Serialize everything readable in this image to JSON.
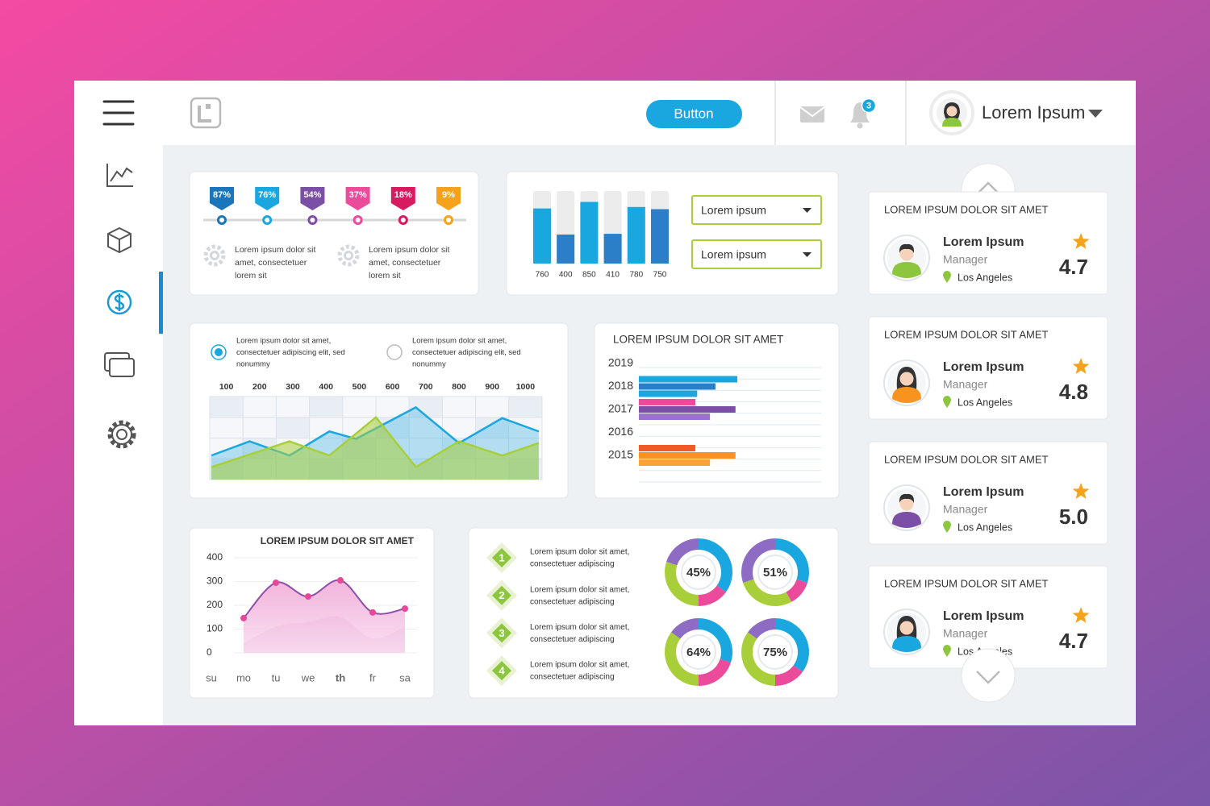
{
  "header": {
    "button": "Button",
    "badge": "3",
    "user": "Lorem Ipsum"
  },
  "chart_data": [
    {
      "type": "markers",
      "values": [
        87,
        76,
        54,
        37,
        18,
        9
      ],
      "value_labels": [
        "87%",
        "76%",
        "54%",
        "37%",
        "18%",
        "9%"
      ],
      "colors": [
        "#1b75bb",
        "#1aa7e0",
        "#7b4fa6",
        "#ec4b9b",
        "#d81b60",
        "#f7a21b"
      ],
      "annotations": [
        [
          "Lorem ipsum dolor sit",
          "amet, consectetuer",
          "lorem sit"
        ],
        [
          "Lorem ipsum dolor sit",
          "amet, consectetuer",
          "lorem sit"
        ]
      ]
    },
    {
      "type": "bar",
      "values": [
        760,
        400,
        850,
        410,
        780,
        750
      ],
      "colors": [
        "#1aa7e0",
        "#2a7fc8",
        "#1aa7e0",
        "#2a7fc8",
        "#1aa7e0",
        "#2a7fc8"
      ],
      "ylim": [
        0,
        1000
      ],
      "controls": [
        "Lorem ipsum",
        "Lorem ipsum"
      ]
    },
    {
      "type": "area",
      "options": [
        {
          "lines": [
            "Lorem ipsum dolor sit amet,",
            "consectetuer adipiscing elit, sed",
            "nonummy"
          ],
          "selected": true
        },
        {
          "lines": [
            "Lorem ipsum dolor sit amet,",
            "consectetuer adipiscing elit, sed",
            "nonummy"
          ],
          "selected": false
        }
      ],
      "xlim": [
        50,
        1050
      ],
      "xticks": [
        100,
        200,
        300,
        400,
        500,
        600,
        700,
        800,
        900,
        1000
      ],
      "ylim": [
        0,
        100
      ],
      "series": [
        {
          "color": "#1aa7e0",
          "x": [
            55,
            170,
            290,
            410,
            490,
            670,
            800,
            930,
            1040
          ],
          "values": [
            29,
            46,
            29,
            58,
            49,
            87,
            44,
            74,
            58
          ]
        },
        {
          "color": "#a8cf3a",
          "x": [
            55,
            290,
            410,
            550,
            670,
            800,
            930,
            1040
          ],
          "values": [
            15,
            46,
            29,
            75,
            15,
            46,
            29,
            44
          ]
        }
      ]
    },
    {
      "type": "hbar",
      "title": "LOREM IPSUM DOLOR SIT AMET",
      "categories": [
        "2019",
        "2018",
        "2017",
        "2016",
        "2015"
      ],
      "values": [
        null,
        [
          54,
          42,
          32
        ],
        [
          31,
          53,
          39
        ],
        null,
        [
          31,
          53,
          39
        ]
      ],
      "colors": [
        null,
        [
          "#1aa7e0",
          "#2a7fc8",
          "#1aa7e0"
        ],
        [
          "#ec4b9b",
          "#7b4fa6",
          "#9b72c9"
        ],
        null,
        [
          "#f15a24",
          "#f7931e",
          "#f9a33b"
        ]
      ],
      "xlim": [
        0,
        100
      ]
    },
    {
      "type": "line",
      "title": "LOREM IPSUM DOLOR SIT AMET",
      "categories": [
        "su",
        "mo",
        "tu",
        "we",
        "th",
        "fr",
        "sa"
      ],
      "ylim": [
        0,
        400
      ],
      "yticks": [
        0,
        100,
        200,
        300,
        400
      ],
      "series": [
        {
          "color": "#e2b3dd",
          "values": [
            null,
            40,
            110,
            130,
            150,
            60,
            110
          ]
        },
        {
          "color": "#8e4fa8",
          "marker_color": "#e8479a",
          "values": [
            null,
            146,
            295,
            237,
            305,
            170,
            186
          ]
        }
      ]
    },
    {
      "type": "donut",
      "values": [
        45,
        51,
        64,
        75
      ],
      "value_labels": [
        "45%",
        "51%",
        "64%",
        "75%"
      ],
      "colors": [
        "#1aa7e0",
        "#ec4b9b",
        "#a8cf3a",
        "#8e6cc4"
      ],
      "segments": [
        [
          35,
          15,
          30,
          20
        ],
        [
          30,
          12,
          28,
          30
        ],
        [
          30,
          20,
          35,
          15
        ],
        [
          35,
          15,
          35,
          15
        ]
      ],
      "annotations": [
        {
          "number": "1",
          "lines": [
            "Lorem ipsum dolor sit amet,",
            "consectetuer adipiscing"
          ]
        },
        {
          "number": "2",
          "lines": [
            "Lorem ipsum dolor sit amet,",
            "consectetuer adipiscing"
          ]
        },
        {
          "number": "3",
          "lines": [
            "Lorem ipsum dolor sit amet,",
            "consectetuer adipiscing"
          ]
        },
        {
          "number": "4",
          "lines": [
            "Lorem ipsum dolor sit amet,",
            "consectetuer adipiscing"
          ]
        }
      ]
    }
  ],
  "profiles": [
    {
      "title": "LOREM IPSUM DOLOR SIT AMET",
      "name": "Lorem Ipsum",
      "role": "Manager",
      "location": "Los Angeles",
      "rating": "4.7"
    },
    {
      "title": "LOREM IPSUM DOLOR SIT AMET",
      "name": "Lorem Ipsum",
      "role": "Manager",
      "location": "Los Angeles",
      "rating": "4.8"
    },
    {
      "title": "LOREM IPSUM DOLOR SIT AMET",
      "name": "Lorem Ipsum",
      "role": "Manager",
      "location": "Los Angeles",
      "rating": "5.0"
    },
    {
      "title": "LOREM IPSUM DOLOR SIT AMET",
      "name": "Lorem Ipsum",
      "role": "Manager",
      "location": "Los Angeles",
      "rating": "4.7"
    }
  ]
}
